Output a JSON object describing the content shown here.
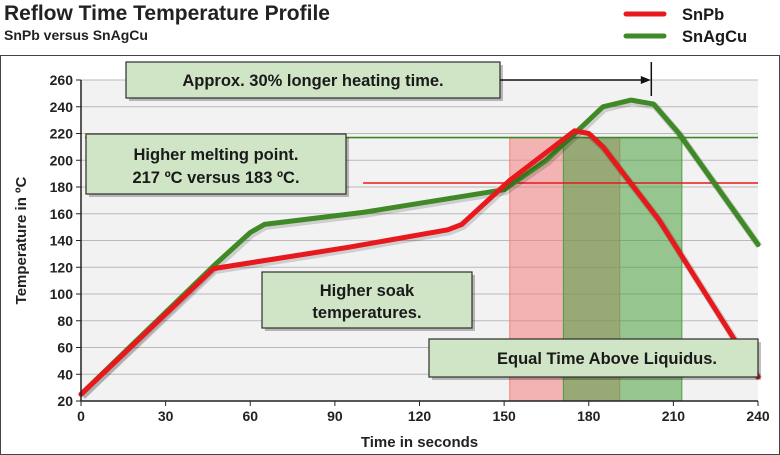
{
  "chart_data": {
    "type": "line",
    "title": "Reflow Time Temperature Profile",
    "subtitle": "SnPb versus SnAgCu",
    "xlabel": "Time in seconds",
    "ylabel": "Temperature in ºC",
    "xlim": [
      0,
      240
    ],
    "ylim": [
      20,
      260
    ],
    "xticks": [
      0,
      30,
      60,
      90,
      120,
      150,
      180,
      210,
      240
    ],
    "yticks": [
      20,
      40,
      60,
      80,
      100,
      120,
      140,
      160,
      180,
      200,
      220,
      240,
      260
    ],
    "grid": "horizontal",
    "legend_position": "top-right",
    "series": [
      {
        "name": "SnPb",
        "color": "#e8191c",
        "x": [
          0,
          47,
          95,
          130,
          135,
          152,
          175,
          180,
          185,
          205,
          240
        ],
        "y": [
          25,
          119,
          135,
          148,
          152,
          185,
          222,
          220,
          210,
          155,
          38
        ]
      },
      {
        "name": "SnAgCu",
        "color": "#3f8a26",
        "x": [
          0,
          47,
          60,
          65,
          100,
          150,
          165,
          185,
          195,
          203,
          212,
          240
        ],
        "y": [
          25,
          121,
          146,
          152,
          161,
          178,
          200,
          240,
          245,
          242,
          220,
          137
        ]
      }
    ],
    "liquidus": [
      {
        "series": "SnPb",
        "temperature": 183,
        "color": "#e8191c"
      },
      {
        "series": "SnAgCu",
        "temperature": 217,
        "color": "#3f8a26"
      }
    ],
    "time_above_liquidus": [
      {
        "series": "SnPb",
        "start": 152,
        "end": 191,
        "color": "#f47f7f"
      },
      {
        "series": "SnAgCu",
        "start": 171,
        "end": 213,
        "color": "#4aa13f"
      }
    ],
    "arrow": {
      "x_from": 148,
      "x_to": 202,
      "y": 242
    },
    "annotations": [
      {
        "id": "heating",
        "text": "Approx. 30% longer heating time."
      },
      {
        "id": "melting",
        "lines": [
          "Higher melting point.",
          "217 ºC versus 183 ºC."
        ]
      },
      {
        "id": "soak",
        "lines": [
          "Higher soak",
          "temperatures."
        ]
      },
      {
        "id": "equal",
        "text": "Equal Time Above Liquidus."
      }
    ]
  }
}
